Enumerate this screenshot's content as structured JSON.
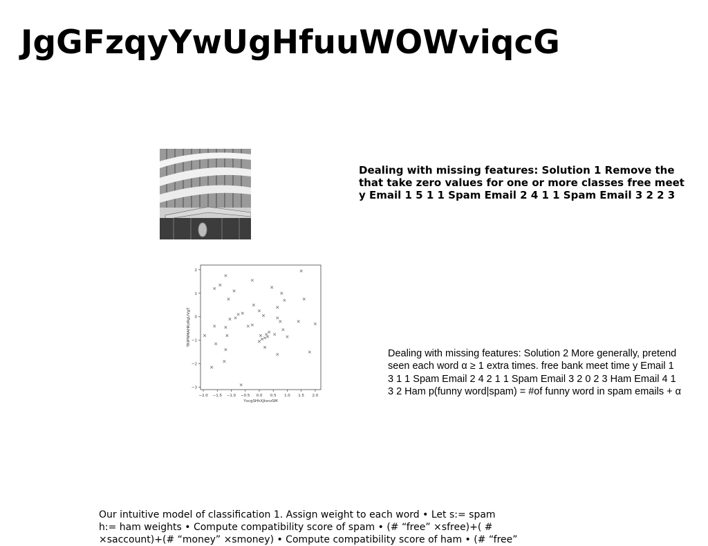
{
  "title": "JgGFzqyYwUgHfuuWOWviqcG",
  "text_block_1": {
    "lines": [
      "Dealing with missing features: Solution 1 Remove the",
      "that take zero values for one or more classes free meet",
      "y Email 1 5 1 1 Spam Email 2 4 1 1 Spam Email 3 2 2 3"
    ]
  },
  "text_block_2": {
    "lines": [
      "Dealing with missing features: Solution 2 More generally, pretend",
      "seen each word α ≥ 1 extra times. free bank meet time y Email 1",
      "3 1 1 Spam Email 2 4 2 1 1 Spam Email 3 2 0 2 3 Ham Email 4 1",
      "3 2 Ham p(funny word|spam) = #of funny word in spam emails + α"
    ]
  },
  "footer_text": {
    "lines": [
      "Our intuitive model of classification 1. Assign weight to each word • Let s:= spam",
      "h:= ham weights • Compute compatibility score of spam • (# “free” ×sfree)+( #",
      "×saccount)+(# “money” ×smoney) • Compute compatibility score of ham • (# “free”"
    ]
  },
  "photo": {
    "icon": "building-photo"
  },
  "chart_data": {
    "type": "scatter",
    "marker": "x",
    "xlabel": "YxcgSHhXJtsnzSM",
    "ylabel": "TKIPNMAHKzRgUVgT",
    "xlim": [
      -2.1,
      2.2
    ],
    "ylim": [
      -3.1,
      2.2
    ],
    "xticks": [
      "−2.0",
      "−1.5",
      "−1.0",
      "−0.5",
      "0.0",
      "0.5",
      "1.0",
      "1.5",
      "2.0"
    ],
    "xtick_values": [
      -2.0,
      -1.5,
      -1.0,
      -0.5,
      0.0,
      0.5,
      1.0,
      1.5,
      2.0
    ],
    "yticks": [
      "−3",
      "−2",
      "−1",
      "0",
      "1",
      "2"
    ],
    "ytick_values": [
      -3,
      -2,
      -1,
      0,
      1,
      2
    ],
    "grid": false,
    "points": [
      [
        -1.6,
        1.2
      ],
      [
        -1.4,
        1.35
      ],
      [
        -1.2,
        1.75
      ],
      [
        -1.1,
        0.75
      ],
      [
        -0.9,
        1.1
      ],
      [
        -0.25,
        1.55
      ],
      [
        0.45,
        1.25
      ],
      [
        0.65,
        0.4
      ],
      [
        0.8,
        1.0
      ],
      [
        0.9,
        0.7
      ],
      [
        1.5,
        1.95
      ],
      [
        1.6,
        0.75
      ],
      [
        -1.95,
        -0.8
      ],
      [
        -1.6,
        -0.4
      ],
      [
        -1.55,
        -1.15
      ],
      [
        -1.2,
        -1.4
      ],
      [
        -1.2,
        -0.45
      ],
      [
        -1.15,
        -0.8
      ],
      [
        -1.25,
        -1.9
      ],
      [
        -1.7,
        -2.15
      ],
      [
        -0.85,
        -0.05
      ],
      [
        -1.05,
        -0.1
      ],
      [
        -0.6,
        0.15
      ],
      [
        -0.75,
        0.1
      ],
      [
        -0.4,
        -0.4
      ],
      [
        -0.25,
        -0.35
      ],
      [
        -0.2,
        0.5
      ],
      [
        0.0,
        0.25
      ],
      [
        0.15,
        0.05
      ],
      [
        0.05,
        -0.8
      ],
      [
        0.1,
        -0.95
      ],
      [
        0.2,
        -0.9
      ],
      [
        0.25,
        -0.75
      ],
      [
        0.3,
        -0.85
      ],
      [
        0.35,
        -0.65
      ],
      [
        0.0,
        -1.05
      ],
      [
        0.2,
        -1.3
      ],
      [
        0.55,
        -0.75
      ],
      [
        0.65,
        -1.6
      ],
      [
        0.65,
        -0.05
      ],
      [
        0.75,
        -0.2
      ],
      [
        0.85,
        -0.55
      ],
      [
        1.0,
        -0.85
      ],
      [
        1.4,
        -0.2
      ],
      [
        1.8,
        -1.5
      ],
      [
        2.0,
        -0.3
      ],
      [
        -0.65,
        -2.9
      ]
    ]
  }
}
